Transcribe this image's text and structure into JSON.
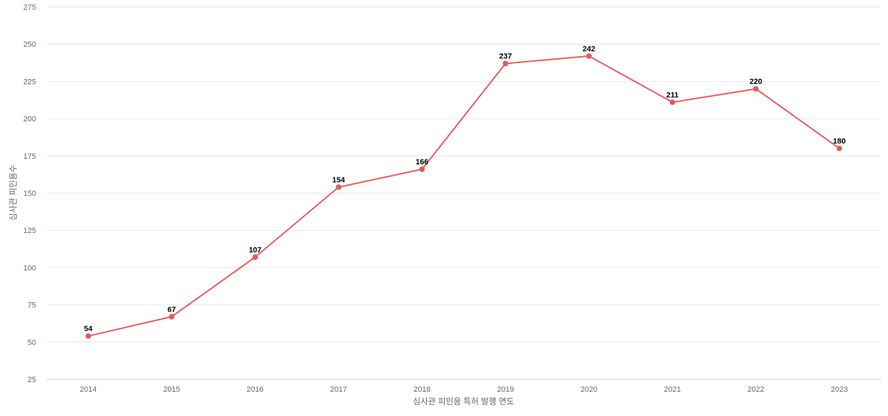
{
  "chart_data": {
    "type": "line",
    "title": "",
    "xlabel": "심사관 피인용 특허 발행 연도",
    "ylabel": "심사관 피인용수",
    "categories": [
      "2014",
      "2015",
      "2016",
      "2017",
      "2018",
      "2019",
      "2020",
      "2021",
      "2022",
      "2023"
    ],
    "series": [
      {
        "values": [
          54,
          67,
          107,
          154,
          166,
          237,
          242,
          211,
          220,
          180
        ]
      }
    ],
    "ylim": [
      25,
      275
    ],
    "yticks": [
      "25",
      "50",
      "75",
      "100",
      "125",
      "150",
      "175",
      "200",
      "225",
      "250",
      "275"
    ],
    "grid": true,
    "legend": "none",
    "data_labels": [
      "54",
      "67",
      "107",
      "154",
      "166",
      "237",
      "242",
      "211",
      "220",
      "180"
    ]
  },
  "colors": {
    "series": "#e85a5a",
    "grid": "#e6e6e6",
    "tick": "#666666"
  }
}
